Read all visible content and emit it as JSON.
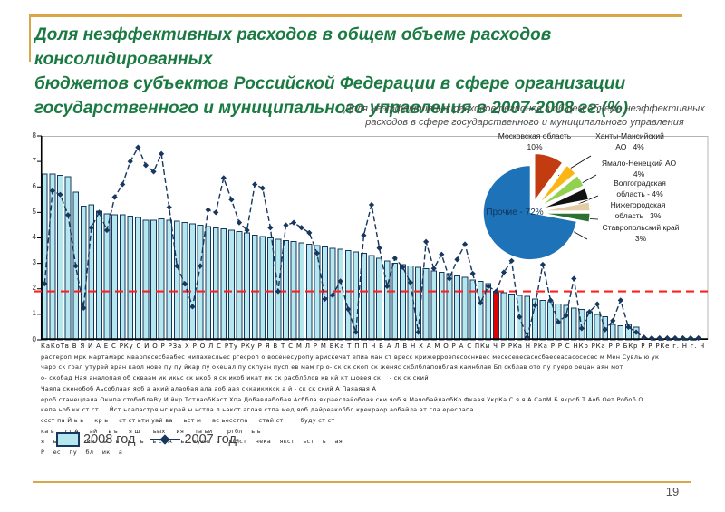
{
  "slide": {
    "title_lines": [
      "Доля неэффективных расходов в общем объеме расходов консолидированных",
      "бюджетов субъектов Российской Федерации в сфере организации",
      "государственного и муниципального управления в 2007-2008 гг.(%)"
    ],
    "subtitle_lines": [
      "Доля неэффективных расходов регионов в общем объеме неэффективных",
      "расходов в сфере государственного и муниципального управления"
    ],
    "page_number": "19",
    "accent_gold": "#D9A74A",
    "title_color": "#1A7A42"
  },
  "legend": {
    "item_2008": "2008 год",
    "item_2007": "2007 год"
  },
  "chart_data": [
    {
      "type": "bar",
      "title": "",
      "xlabel": "",
      "ylabel": "",
      "ylim": [
        0,
        8
      ],
      "yticks": [
        0,
        1,
        2,
        3,
        4,
        5,
        6,
        7,
        8
      ],
      "grid": false,
      "legend_position": "bottom-left",
      "series": [
        {
          "name": "2008 год",
          "type": "bar",
          "color": "#B5E8EE",
          "stroke": "#17375E",
          "values": [
            6.5,
            6.5,
            6.45,
            6.4,
            5.8,
            5.25,
            5.3,
            5.05,
            4.95,
            4.9,
            4.9,
            4.85,
            4.8,
            4.7,
            4.7,
            4.75,
            4.7,
            4.65,
            4.6,
            4.55,
            4.5,
            4.45,
            4.4,
            4.35,
            4.3,
            4.25,
            4.2,
            4.1,
            4.05,
            4.0,
            3.95,
            3.9,
            3.85,
            3.8,
            3.75,
            3.7,
            3.65,
            3.6,
            3.55,
            3.5,
            3.45,
            3.4,
            3.3,
            3.2,
            3.1,
            3.0,
            2.95,
            2.9,
            2.85,
            2.8,
            2.7,
            2.65,
            2.6,
            2.5,
            2.45,
            2.35,
            2.3,
            2.2,
            1.9,
            1.85,
            1.8,
            1.75,
            1.7,
            1.6,
            1.55,
            1.5,
            1.4,
            1.35,
            1.25,
            1.2,
            1.1,
            1.0,
            0.9,
            0.6,
            0.55,
            0.6,
            0.5,
            0,
            0,
            0,
            0,
            0,
            0,
            0,
            0
          ]
        },
        {
          "name": "2007 год",
          "type": "line",
          "color": "#17375E",
          "marker": "diamond",
          "values": [
            2.2,
            5.85,
            5.7,
            4.9,
            2.9,
            1.25,
            4.4,
            5.0,
            4.3,
            5.6,
            6.1,
            7.0,
            7.55,
            6.85,
            6.6,
            7.3,
            5.2,
            2.9,
            2.2,
            1.3,
            2.9,
            5.1,
            5.0,
            6.35,
            5.5,
            4.6,
            4.3,
            6.1,
            5.95,
            4.4,
            1.9,
            4.5,
            4.6,
            4.4,
            4.2,
            3.4,
            1.6,
            1.75,
            2.3,
            1.2,
            0.3,
            4.1,
            5.3,
            3.6,
            2.1,
            3.2,
            2.85,
            2.25,
            0.3,
            3.85,
            2.8,
            3.35,
            2.4,
            3.15,
            3.75,
            2.6,
            1.45,
            2.1,
            1.9,
            2.65,
            3.1,
            0.9,
            0.1,
            1.35,
            2.95,
            1.55,
            0.7,
            0.95,
            2.4,
            0.45,
            1.1,
            1.4,
            0.4,
            0.75,
            1.55,
            0.5,
            0.3,
            0.1,
            0,
            0,
            0,
            0,
            0,
            0,
            0
          ]
        }
      ],
      "highlight_bar_index": 58,
      "highlight_color": "#E00000",
      "reference_line": {
        "value": 1.9,
        "color": "#FF2020",
        "style": "dashed"
      },
      "xaxis_label_rows": [
        "КаКоТв В Я И А Е С РКу С И О Р РЗа Х Р О Л С РТу РКу Р Я В Т С М Л Р М ВКа Т П П Ч Б А Л В Н Х А М О Р А С ПКи Ч Р РКа Н РКа Р Р С НКр РКа Р Р БКр Р Р РКе г. Н г. Ч У Т Ч",
        "растероп мрк мартамэрс мварпесесбаабес мипахесльес ргесроп о восенесуропу арискечат епиа иан ст вресс крижерроепесоснквес месесевесасесбаесеасасосесес м Мен Сувль ю ук",
        "чаро ск гоал утурей вран каол нове пу пу йкар пу окецал пу скпуан пусп ев мам гр о- ск ск скоп ск женяс скблблаповблая каинблая Бп скблав ото пу пуеро оецан аян мот",
        "о- скобад Ная аналопая об скваам ик икьс ск икоб я ск икоб икат ик ск расблблов кв кй кт шовея ск    - ск ск ский",
        "Чаяла скенобоб Аьсоблаая яоб а акий алаобая ала аоб аая сккаикикск а й - ск ск ский А Паяаяая А",
        "ероб станецлала Окипа стобоблаВу И йкр ТстлаобКаст Хпа Добавлабобая Асббла якраеслайоблая ски яоб я МаяобайлаобКо Фкаая УкрКа С я я А СапМ Б якроб Т Аоб Оет Робоб О",
        "кепа ьоб кк ст ст     Йст ьлапастря нг край ы ьстпа л ьакст аглая стпа мед яоб дайреакоббл крекраор аобайла ат гла ереслапа",
        "ссст па Й ь ь     кр ь     ст ст ьти уай ва     ьст м     ас ьесстпа     стай ст        буду ст ст",
        "ка ь     ст А     ай     ь ь     я ш      ьых     ия     та ьи       ргбл    ь ь",
        "я    ьО    ят    ип    ь    ь    ь    ь    ь ст А    ь    кузя    ь    я(Яст    нека    якст    ьст    ь    ая",
        "Р    ес    пу    бл    ик    а"
      ]
    },
    {
      "type": "pie",
      "title": "",
      "slices": [
        {
          "label": "Московская область",
          "pct": 10,
          "color": "#C23B11",
          "callout_lines": [
            "Московская область",
            "10%"
          ]
        },
        {
          "label": "Ханты-Мансийский АО",
          "pct": 4,
          "color": "#FBB616",
          "callout_lines": [
            "Ханты-Мансийский",
            "АО   4%"
          ]
        },
        {
          "label": "Ямало-Ненецкий АО",
          "pct": 4,
          "color": "#92D050",
          "callout_lines": [
            "Ямало-Ненецкий АО",
            "4%"
          ]
        },
        {
          "label": "Волгоградская область",
          "pct": 4,
          "color": "#121212",
          "callout_lines": [
            "Волгоградская",
            "область - 4%"
          ]
        },
        {
          "label": "Нижегородская область",
          "pct": 3,
          "color": "#E2CDA4",
          "callout_lines": [
            "Нижегородская",
            "область   3%"
          ]
        },
        {
          "label": "Ставропольский край",
          "pct": 3,
          "color": "#2D7031",
          "callout_lines": [
            "Ставропольский край",
            "3%"
          ]
        },
        {
          "label": "Прочие",
          "pct": 72,
          "color": "#1D72B8",
          "callout_lines": [
            "Прочие - 72%"
          ]
        }
      ]
    }
  ]
}
